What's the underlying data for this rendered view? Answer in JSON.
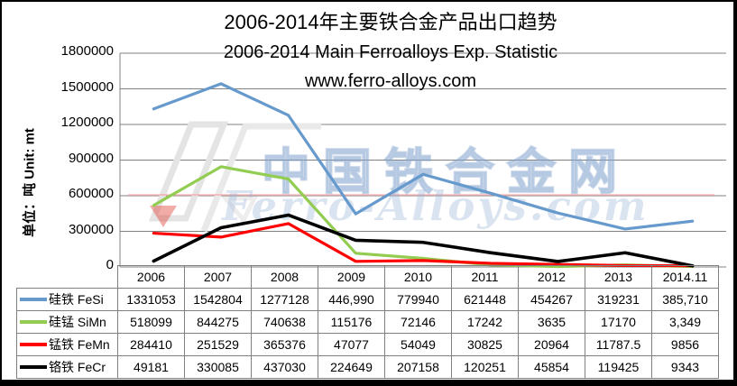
{
  "header": {
    "title_zh": "2006-2014年主要铁合金产品出口趋势",
    "title_en": "2006-2014 Main Ferroalloys Exp. Statistic",
    "site": "www.ferro-alloys.com"
  },
  "y_axis": {
    "unit_label": "单位：吨 Unit: mt",
    "ticks": [
      "1800000",
      "1500000",
      "1200000",
      "900000",
      "600000",
      "300000",
      "0"
    ]
  },
  "watermark": {
    "cn": "中国铁合金网",
    "en": "Ferro-Alloys.com"
  },
  "chart_data": {
    "type": "line",
    "title": "2006-2014年主要铁合金产品出口趋势 / 2006-2014 Main Ferroalloys Exp. Statistic",
    "xlabel": "",
    "ylabel": "单位：吨 Unit: mt",
    "ylim": [
      0,
      1800000
    ],
    "y_step": 300000,
    "grid": true,
    "legend_position": "table-left",
    "categories": [
      "2006",
      "2007",
      "2008",
      "2009",
      "2010",
      "2011",
      "2012",
      "2013",
      "2014.11"
    ],
    "series": [
      {
        "name": "硅铁 FeSi",
        "color": "#6699CC",
        "values": [
          1331053,
          1542804,
          1277128,
          446990,
          779940,
          621448,
          454267,
          319231,
          385710
        ],
        "display": [
          "1331053",
          "1542804",
          "1277128",
          "446,990",
          "779940",
          "621448",
          "454267",
          "319231",
          "385,710"
        ]
      },
      {
        "name": "硅锰 SiMn",
        "color": "#92CC50",
        "values": [
          518099,
          844275,
          740638,
          115176,
          72146,
          17242,
          3635,
          17170,
          3349
        ],
        "display": [
          "518099",
          "844275",
          "740638",
          "115176",
          "72146",
          "17242",
          "3635",
          "17170",
          "3,349"
        ]
      },
      {
        "name": "锰铁 FeMn",
        "color": "#FF0000",
        "values": [
          284410,
          251529,
          365376,
          47077,
          54049,
          30825,
          20964,
          11787.5,
          9856
        ],
        "display": [
          "284410",
          "251529",
          "365376",
          "47077",
          "54049",
          "30825",
          "20964",
          "11787.5",
          "9856"
        ]
      },
      {
        "name": "铬铁 FeCr",
        "color": "#000000",
        "values": [
          49181,
          330085,
          437030,
          224649,
          207158,
          120251,
          45854,
          119425,
          9343
        ],
        "display": [
          "49181",
          "330085",
          "437030",
          "224649",
          "207158",
          "120251",
          "45854",
          "119425",
          "9343"
        ]
      }
    ],
    "colors": {
      "gridline": "#808080",
      "axis": "#808080",
      "table_border": "#808080"
    }
  }
}
